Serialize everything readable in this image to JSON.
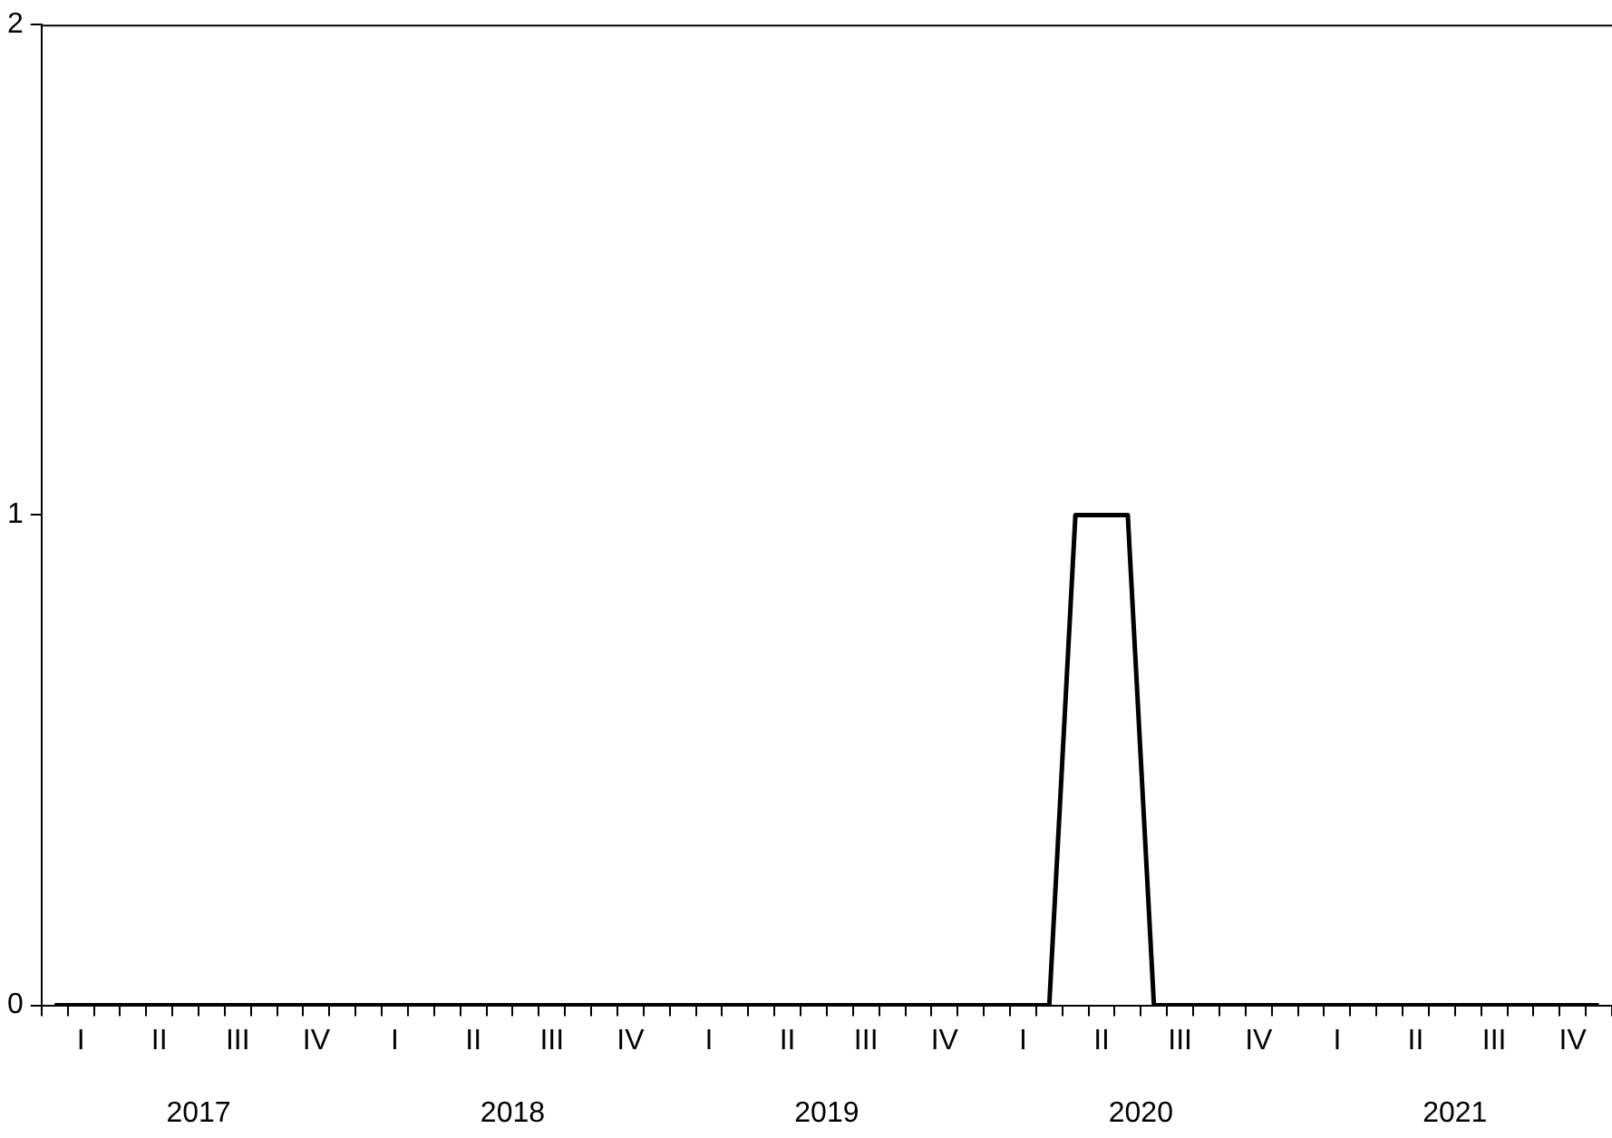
{
  "chart_data": {
    "type": "line",
    "categories": [
      null,
      "I",
      null,
      null,
      "II",
      null,
      null,
      "III",
      null,
      null,
      "IV",
      null,
      null,
      "I",
      null,
      null,
      "II",
      null,
      null,
      "III",
      null,
      null,
      "IV",
      null,
      null,
      "I",
      null,
      null,
      "II",
      null,
      null,
      "III",
      null,
      null,
      "IV",
      null,
      null,
      "I",
      null,
      null,
      "II",
      null,
      null,
      "III",
      null,
      null,
      "IV",
      null,
      null,
      "I",
      null,
      null,
      "II",
      null,
      null,
      "III",
      null,
      null,
      "IV",
      null
    ],
    "series": [
      {
        "color": "#000000",
        "values": [
          0,
          0,
          0,
          0,
          0,
          0,
          0,
          0,
          0,
          0,
          0,
          0,
          0,
          0,
          0,
          0,
          0,
          0,
          0,
          0,
          0,
          0,
          0,
          0,
          0,
          0,
          0,
          0,
          0,
          0,
          0,
          0,
          0,
          0,
          0,
          0,
          0,
          0,
          0,
          1,
          1,
          1,
          0,
          0,
          0,
          0,
          0,
          0,
          0,
          0,
          0,
          0,
          0,
          0,
          0,
          0,
          0,
          0,
          0,
          0
        ]
      }
    ],
    "annotations": [
      "2017",
      "2018",
      "2019",
      "2020",
      "2021"
    ],
    "ylim": [
      0,
      2
    ],
    "yticks": [
      0,
      1,
      2
    ],
    "grid": false,
    "legend": false
  }
}
